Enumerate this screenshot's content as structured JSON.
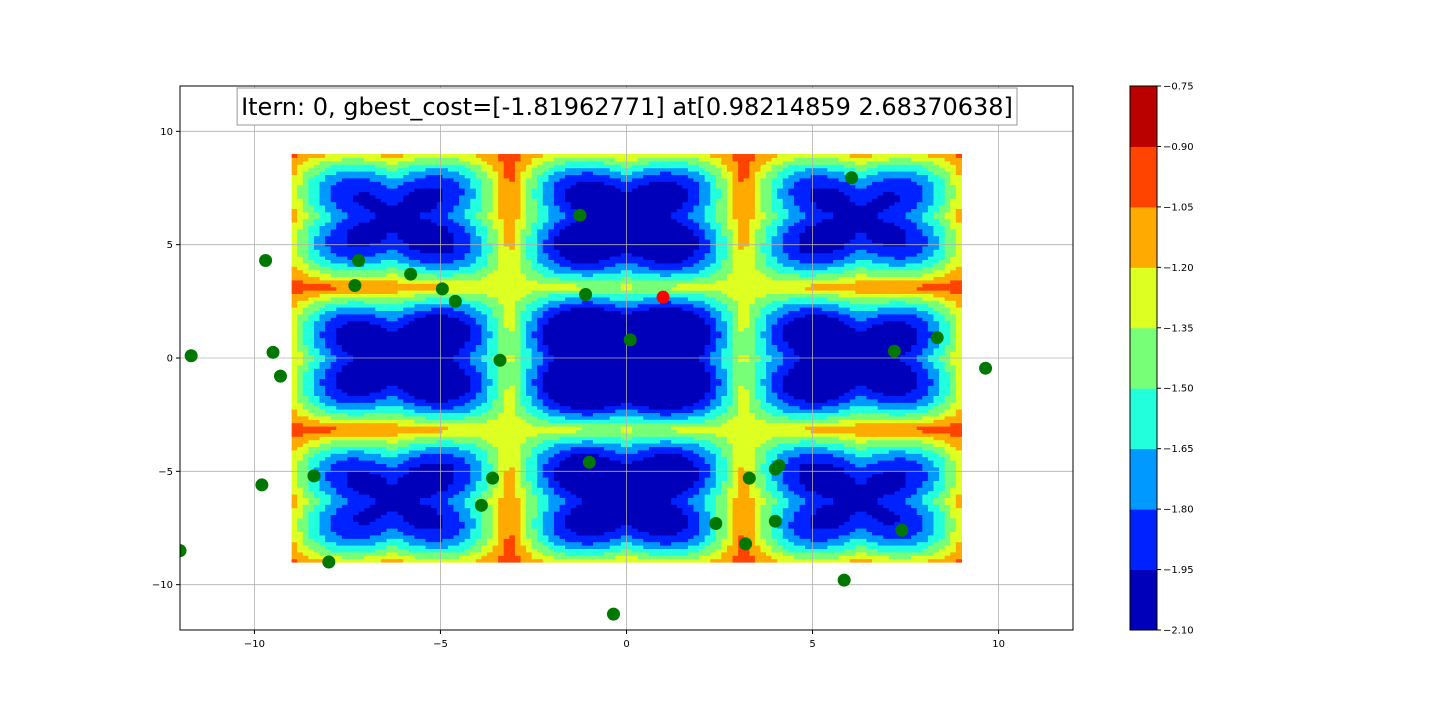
{
  "chart_data": {
    "type": "scatter",
    "title": "Itern: 0, gbest_cost=[-1.81962771] at[0.98214859 2.68370638]",
    "xlabel": "",
    "ylabel": "",
    "xlim": [
      -12,
      12
    ],
    "ylim": [
      -12,
      12
    ],
    "xticks": [
      -10,
      -5,
      0,
      5,
      10
    ],
    "yticks": [
      -10,
      -5,
      0,
      5,
      10
    ],
    "xtick_labels": [
      "−10",
      "−5",
      "0",
      "5",
      "10"
    ],
    "ytick_labels": [
      "−10",
      "−5",
      "0",
      "5",
      "10"
    ],
    "grid": true,
    "background_contour": {
      "type": "filled-contour",
      "x_range": [
        -9,
        9
      ],
      "y_range": [
        -9,
        9
      ],
      "colormap": "jet",
      "levels": [
        -2.1,
        -1.95,
        -1.8,
        -1.65,
        -1.5,
        -1.35,
        -1.2,
        -1.05,
        -0.9,
        -0.75
      ],
      "level_colors": [
        "#0000bb",
        "#0022ff",
        "#0099ff",
        "#22ffdd",
        "#77ff77",
        "#ddff22",
        "#ffaa00",
        "#ff4400",
        "#bb0000"
      ]
    },
    "colorbar": {
      "tick_values": [
        -2.1,
        -1.95,
        -1.8,
        -1.65,
        -1.5,
        -1.35,
        -1.2,
        -1.05,
        -0.9,
        -0.75
      ],
      "tick_labels": [
        "−2.10",
        "−1.95",
        "−1.80",
        "−1.65",
        "−1.50",
        "−1.35",
        "−1.20",
        "−1.05",
        "−0.90",
        "−0.75"
      ]
    },
    "series": [
      {
        "color": "#007700",
        "points": [
          [
            -11.7,
            0.1
          ],
          [
            -9.7,
            4.3
          ],
          [
            -9.5,
            0.25
          ],
          [
            -9.3,
            -0.8
          ],
          [
            -9.8,
            -5.6
          ],
          [
            -12.0,
            -8.5
          ],
          [
            -8.4,
            -5.2
          ],
          [
            -8.0,
            -9.0
          ],
          [
            -7.2,
            4.3
          ],
          [
            -7.3,
            3.2
          ],
          [
            -5.8,
            3.7
          ],
          [
            -4.95,
            3.05
          ],
          [
            -4.6,
            2.5
          ],
          [
            -3.4,
            -0.1
          ],
          [
            -3.6,
            -5.3
          ],
          [
            -3.9,
            -6.5
          ],
          [
            -1.25,
            6.3
          ],
          [
            -1.1,
            2.8
          ],
          [
            -1.0,
            -4.6
          ],
          [
            -0.35,
            -11.3
          ],
          [
            0.1,
            0.8
          ],
          [
            2.4,
            -7.3
          ],
          [
            3.3,
            -5.3
          ],
          [
            3.2,
            -8.2
          ],
          [
            4.0,
            -4.9
          ],
          [
            4.1,
            -4.75
          ],
          [
            4.0,
            -7.2
          ],
          [
            6.05,
            7.95
          ],
          [
            5.85,
            -9.8
          ],
          [
            7.2,
            0.3
          ],
          [
            7.4,
            -7.6
          ],
          [
            8.35,
            0.9
          ],
          [
            9.65,
            -0.45
          ]
        ]
      },
      {
        "color": "#ff0000",
        "points": [
          [
            0.98214859,
            2.68370638
          ]
        ]
      }
    ]
  }
}
